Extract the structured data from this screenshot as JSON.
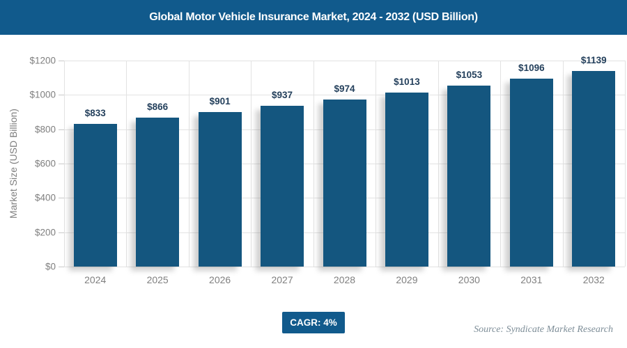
{
  "header": {
    "title": "Global Motor Vehicle Insurance Market, 2024 - 2032 (USD Billion)"
  },
  "chart_data": {
    "type": "bar",
    "title": "Global Motor Vehicle Insurance Market, 2024 - 2032 (USD Billion)",
    "categories": [
      "2024",
      "2025",
      "2026",
      "2027",
      "2028",
      "2029",
      "2030",
      "2031",
      "2032"
    ],
    "values": [
      833,
      866,
      901,
      937,
      974,
      1013,
      1053,
      1096,
      1139
    ],
    "bar_labels": [
      "$833",
      "$866",
      "$901",
      "$937",
      "$974",
      "$1013",
      "$1053",
      "$1096",
      "$1139"
    ],
    "xlabel": "",
    "ylabel": "Market Size (USD Billion)",
    "ylim": [
      0,
      1200
    ],
    "ytick_values": [
      0,
      200,
      400,
      600,
      800,
      1000,
      1200
    ],
    "ytick_labels": [
      "$0",
      "$200",
      "$400",
      "$600",
      "$800",
      "$1000",
      "$1200"
    ],
    "grid": true,
    "legend": false,
    "legend_position": "none"
  },
  "footer": {
    "cagr_badge": "CAGR: 4%",
    "source": "Source: Syndicate Market Research"
  },
  "colors": {
    "titlebar_bg": "#115A8C",
    "title_text": "#FFFFFF",
    "bar": "#14567F",
    "badge_bg": "#115A8C",
    "data_label": "#24405C",
    "axis_text": "#7F7F7F",
    "grid": "#E2E2E2",
    "source_text": "#7E8E98"
  }
}
